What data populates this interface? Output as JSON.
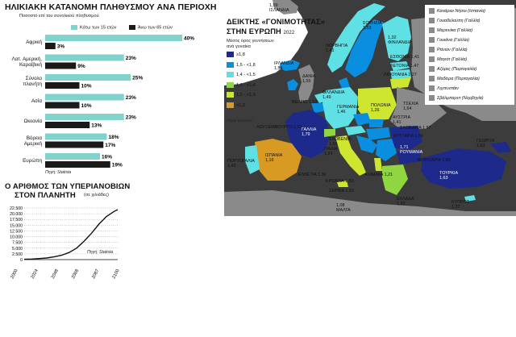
{
  "colors": {
    "bar_under15": "#7fd3cc",
    "bar_over65": "#1a1a1a",
    "map_sea": "#3c3c3c",
    "map_land_other": "#8a8a8a",
    "c_ge18": "#1d2a8c",
    "c_15_18": "#0a8fe0",
    "c_14_15": "#5ee0e4",
    "c_13_14": "#8fd640",
    "c_12_13": "#cfe630",
    "c_lt12": "#d89a22"
  },
  "age_chart": {
    "title": "ΗΛΙΚΙΑΚΗ ΚΑΤΑΝΟΜΗ ΠΛΗΘΥΣΜΟΥ ΑΝΑ ΠΕΡΙΟΧΗ",
    "subtitle": "Ποσοστό επί του συνολικού πληθυσμού",
    "source": "Πηγή: Statista"
  },
  "pop_chart": {
    "title_line1": "Ο ΑΡΙΘΜΟΣ ΤΩΝ ΥΠΕΡΙΑΝΟΒΙΩΝ",
    "title_line2": "ΣΤΟΝ ΠΛΑΝΗΤΗ",
    "unit": "(σε χιλιάδες)",
    "source": "Πηγή: Statista"
  },
  "map": {
    "title_line1": "ΔΕΙΚΤΗΣ «ΓΟΝΙΜΟΤΗΤΑΣ»",
    "title_line2": "ΣΤΗΝ ΕΥΡΩΠΗ",
    "year": "2022",
    "subtitle_line1": "Μέσος όρος γεννήσεων",
    "subtitle_line2": "ανά γυναίκα",
    "source": "Πηγή: Eurostat",
    "legend": [
      {
        "label": "≥1,8",
        "color_key": "c_ge18"
      },
      {
        "label": "1,5 - <1,8",
        "color_key": "c_15_18"
      },
      {
        "label": "1,4 - <1,5",
        "color_key": "c_14_15"
      },
      {
        "label": "1,3 - <1,4",
        "color_key": "c_13_14"
      },
      {
        "label": "1,2 - <1,3",
        "color_key": "c_12_13"
      },
      {
        "label": "<1,2",
        "color_key": "c_lt12"
      }
    ],
    "territories": [
      "Κανάριοι Νήσοι (Ισπανία)",
      "Γουαδελούπη (Γαλλία)",
      "Μαρτινίκα (Γαλλία)",
      "Γουιάνα (Γαλλία)",
      "Ρεϊνιόν (Γαλλία)",
      "Μαγιότ (Γαλλία)",
      "Αζόρες (Πορτογαλία)",
      "Μαδέιρα (Πορτογαλία)",
      "Λιχτενστάιν",
      "Σβάλμπαρντ (Νορβηγία)"
    ],
    "labels": [
      {
        "name": "ΙΣΛΑΝΔΙΑ",
        "value": "1,59"
      },
      {
        "name": "ΣΟΥΗΔΙΑ",
        "value": "1,53"
      },
      {
        "name": "ΦΙΝΛΑΝΔΙΑ",
        "value": "1,32"
      },
      {
        "name": "ΝΟΡΒΗΓΙΑ",
        "value": "1,41"
      },
      {
        "name": "ΙΡΛΑΝΔΙΑ",
        "value": "1,54"
      },
      {
        "name": "ΕΣΘΟΝΙΑ",
        "value": "1,41"
      },
      {
        "name": "ΛΕΤΟΝΙΑ",
        "value": "1,47"
      },
      {
        "name": "ΛΙΘΟΥΑΝΙΑ",
        "value": "1,27"
      },
      {
        "name": "ΔΑΝΙΑ",
        "value": "1,55"
      },
      {
        "name": "ΟΛΛΑΝΔΙΑ",
        "value": "1,49"
      },
      {
        "name": "ΒΕΛΓΙΟ",
        "value": "1,53"
      },
      {
        "name": "ΓΕΡΜΑΝΙΑ",
        "value": "1,46"
      },
      {
        "name": "ΠΟΛΩΝΙΑ",
        "value": "1,26"
      },
      {
        "name": "ΤΣΕΧΙΑ",
        "value": "1,64"
      },
      {
        "name": "ΑΥΣΤΡΙΑ",
        "value": "1,41"
      },
      {
        "name": "ΣΛΟΒΑΚΙΑ",
        "value": "1,57"
      },
      {
        "name": "ΟΥΓΓΑΡΙΑ",
        "value": "1,56"
      },
      {
        "name": "ΛΟΥΞΕΜΒΟΥΡΓΟ",
        "value": "1,31"
      },
      {
        "name": "ΓΑΛΛΙΑ",
        "value": "1,79"
      },
      {
        "name": "ΕΛΒΕΤΙΑ",
        "value": "1,39"
      },
      {
        "name": "ΣΛΟΒΕΝΙΑ",
        "value": "1,55"
      },
      {
        "name": "ΚΡΟΑΤΙΑ",
        "value": "1,53"
      },
      {
        "name": "ΣΕΡΒΙΑ",
        "value": "1,63"
      },
      {
        "name": "ΡΟΥΜΑΝΙΑ",
        "value": "1,71"
      },
      {
        "name": "ΒΟΥΛΓΑΡΙΑ",
        "value": "1,65"
      },
      {
        "name": "ΓΕΩΡΓΙΑ",
        "value": "1,83"
      },
      {
        "name": "ΠΟΡΤΟΓΑΛΙΑ",
        "value": "1,43"
      },
      {
        "name": "ΙΣΠΑΝΙΑ",
        "value": "1,16"
      },
      {
        "name": "ΙΤΑΛΙΑ",
        "value": "1,24"
      },
      {
        "name": "ΑΛΒΑΝΙΑ",
        "value": "1,21"
      },
      {
        "name": "ΤΟΥΡΚΙΑ",
        "value": "1,63"
      },
      {
        "name": "ΕΛΛΑΔΑ",
        "value": "1,32"
      },
      {
        "name": "ΚΥΠΡΟΣ",
        "value": "1,37"
      },
      {
        "name": "ΜΑΛΤΑ",
        "value": "1,08"
      }
    ]
  },
  "chart_data": [
    {
      "type": "bar",
      "title": "ΗΛΙΚΙΑΚΗ ΚΑΤΑΝΟΜΗ ΠΛΗΘΥΣΜΟΥ ΑΝΑ ΠΕΡΙΟΧΗ",
      "subtitle": "Ποσοστό επί του συνολικού πληθυσμού",
      "orientation": "horizontal",
      "legend_position": "top",
      "categories": [
        "Αφρική",
        "Λατ. Αμερική, Καραϊβική",
        "Σύνολο πλανήτη",
        "Ασία",
        "Ωκεανία",
        "Βόρεια Αμερική",
        "Ευρώπη"
      ],
      "categories_display": [
        [
          "Αφρική"
        ],
        [
          "Λατ. Αμερική,",
          "Καραϊβική"
        ],
        [
          "Σύνολο",
          "πλανήτη"
        ],
        [
          "Ασία"
        ],
        [
          "Ωκεανία"
        ],
        [
          "Βόρεια",
          "Αμερική"
        ],
        [
          "Ευρώπη"
        ]
      ],
      "series": [
        {
          "name": "Κάτω των 15 ετών",
          "values": [
            40,
            23,
            25,
            23,
            23,
            18,
            16
          ],
          "labels": [
            "40%",
            "23%",
            "25%",
            "23%",
            "23%",
            "18%",
            "16%"
          ]
        },
        {
          "name": "Άνω των 65 ετών",
          "values": [
            3,
            9,
            10,
            10,
            13,
            17,
            19
          ],
          "labels": [
            "3%",
            "9%",
            "10%",
            "10%",
            "13%",
            "17%",
            "19%"
          ]
        }
      ],
      "xlim": [
        0,
        40
      ]
    },
    {
      "type": "line",
      "title": "Ο ΑΡΙΘΜΟΣ ΤΩΝ ΥΠΕΡΙΑΝΟΒΙΩΝ ΣΤΟΝ ΠΛΑΝΗΤΗ",
      "unit": "(σε χιλιάδες)",
      "x": [
        2000,
        2008,
        2016,
        2024,
        2032,
        2040,
        2048,
        2056,
        2064,
        2072,
        2080,
        2088,
        2096,
        2100
      ],
      "y": [
        150,
        250,
        450,
        700,
        1200,
        1900,
        3100,
        5000,
        8000,
        11500,
        15500,
        18800,
        21000,
        21800
      ],
      "xticks": [
        "2000",
        "2024",
        "2048",
        "2068",
        "2087",
        "2100"
      ],
      "yticks": [
        "0",
        "2.500",
        "5.000",
        "7.500",
        "10.000",
        "12.500",
        "15.000",
        "17.500",
        "20.000",
        "22.500"
      ],
      "xlim": [
        2000,
        2100
      ],
      "ylim": [
        0,
        22500
      ],
      "grid": "horizontal dotted"
    }
  ]
}
